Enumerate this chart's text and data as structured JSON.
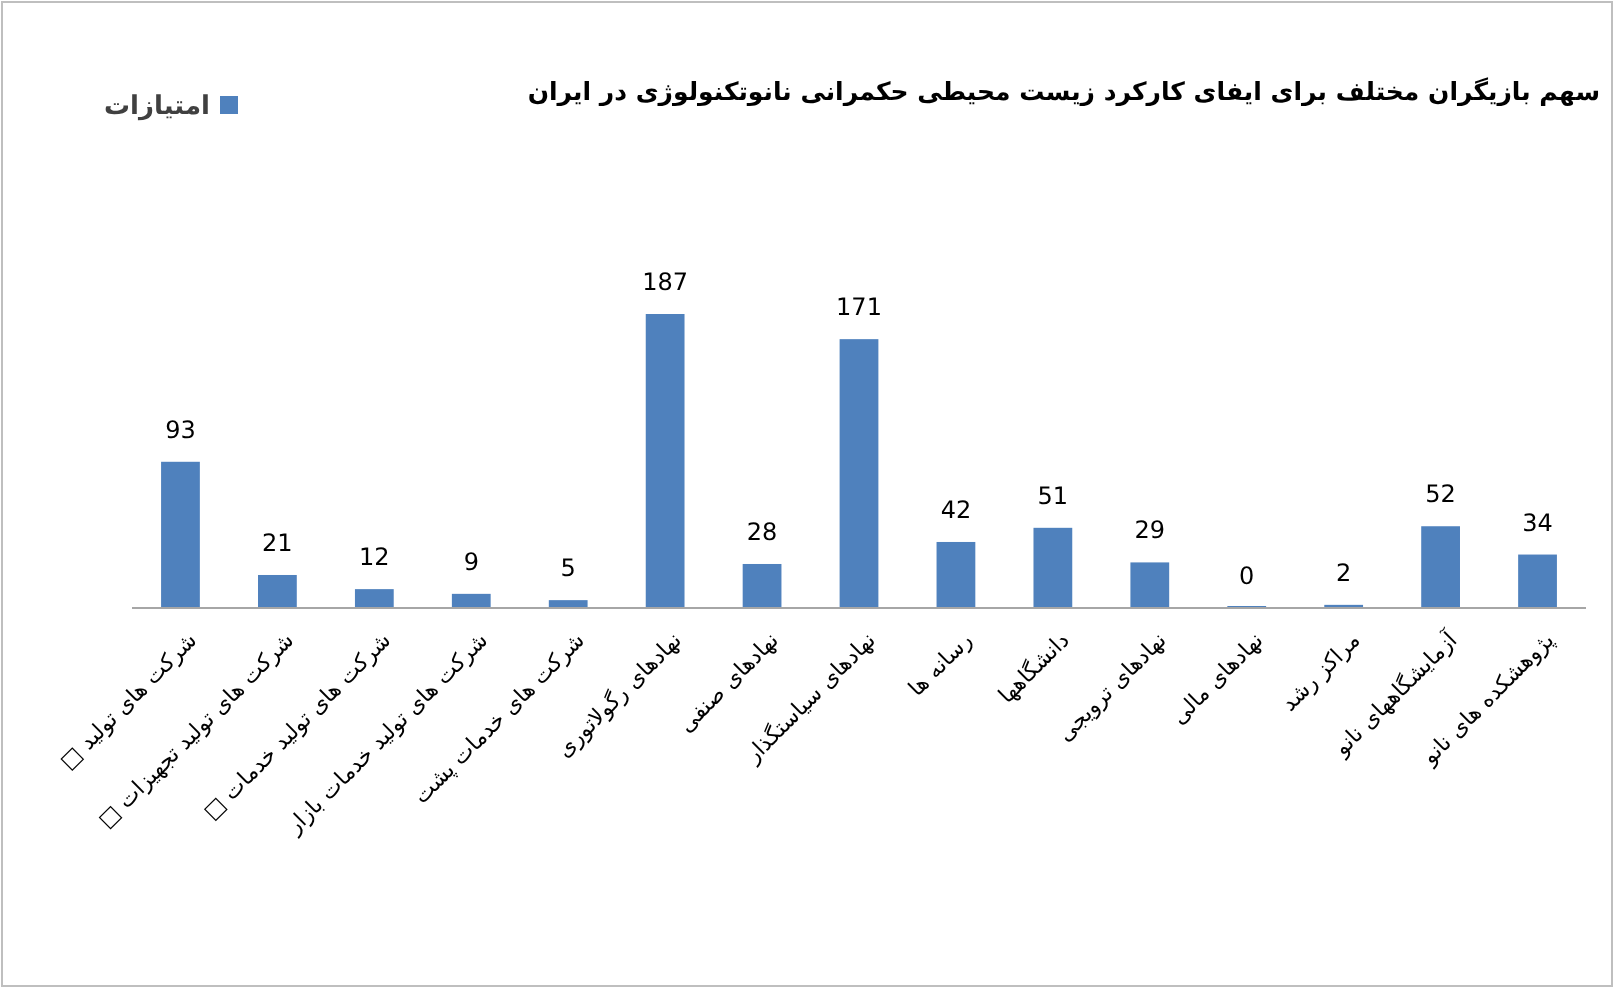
{
  "chart_data": {
    "type": "bar",
    "title": "سهم بازیگران مختلف برای ایفای کارکرد زیست محیطی حکمرانی نانوتکنولوژی در ایران",
    "categories": [
      "شرکت های تولید □",
      "شرکت های تولید تجهیزات □",
      "شرکت های تولید خدمات □",
      "شرکت های تولید خدمات بازار",
      "شرکت های خدمات پشت",
      "نهادهای رگولاتوری",
      "نهادهای صنفی",
      "نهادهای سیاستگذار",
      "رسانه ها",
      "دانشگاهها",
      "نهادهای ترویجی",
      "نهادهای مالی",
      "مراکز رشد",
      "آزمایشگاههای نانو",
      "پژوهشکده های نانو"
    ],
    "series": [
      {
        "name": "امتیازات",
        "color": "#4f81bd",
        "values": [
          93,
          21,
          12,
          9,
          5,
          187,
          28,
          171,
          42,
          51,
          29,
          0,
          2,
          52,
          34
        ]
      }
    ],
    "data_labels": true,
    "legend": "top left"
  }
}
